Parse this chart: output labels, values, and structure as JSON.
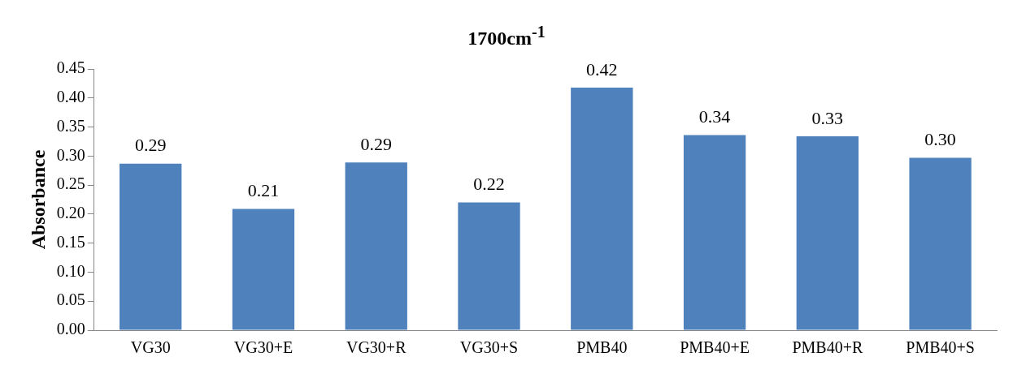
{
  "chart_data": {
    "type": "bar",
    "title": "1700cm$^{-1}$",
    "ylabel": "Absorbance",
    "categories": [
      "VG30",
      "VG30+E",
      "VG30+R",
      "VG30+S",
      "PMB40",
      "PMB40+E",
      "PMB40+R",
      "PMB40+S"
    ],
    "values": [
      0.287,
      0.209,
      0.289,
      0.22,
      0.418,
      0.336,
      0.334,
      0.297
    ],
    "value_labels": [
      "0.29",
      "0.21",
      "0.29",
      "0.22",
      "0.42",
      "0.34",
      "0.33",
      "0.30"
    ],
    "color": "#4f81bd",
    "ylim": [
      0,
      0.45
    ],
    "yticks": [
      {
        "value": 0,
        "label": "0.00"
      },
      {
        "value": 0.05,
        "label": "0.05"
      },
      {
        "value": 0.1,
        "label": "0.10"
      },
      {
        "value": 0.15,
        "label": "0.15"
      },
      {
        "value": 0.2,
        "label": "0.20"
      },
      {
        "value": 0.25,
        "label": "0.25"
      },
      {
        "value": 0.3,
        "label": "0.30"
      },
      {
        "value": 0.35,
        "label": "0.35"
      },
      {
        "value": 0.4,
        "label": "0.40"
      },
      {
        "value": 0.45,
        "label": "0.45"
      }
    ],
    "grid": false,
    "legend": false
  }
}
